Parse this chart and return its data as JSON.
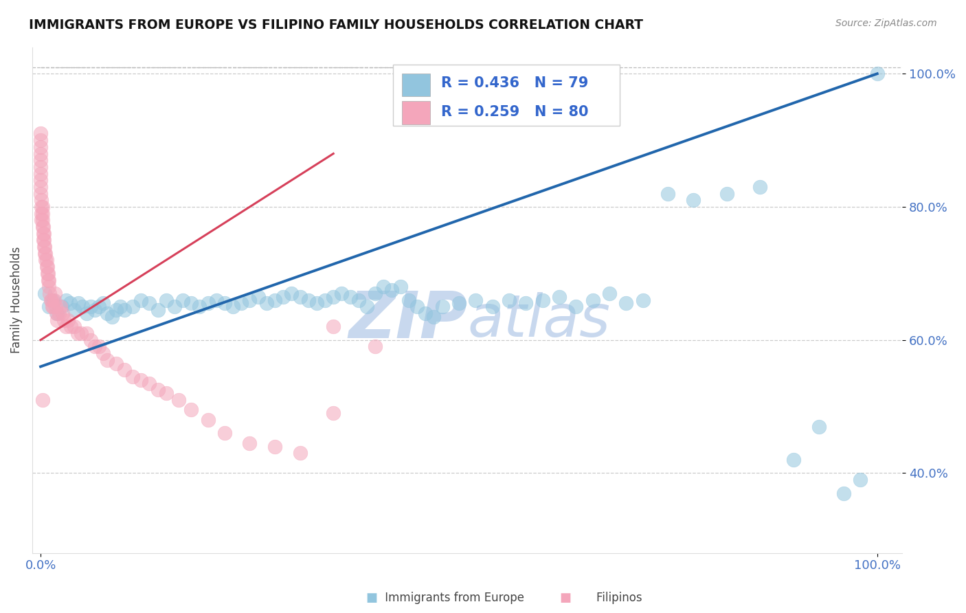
{
  "title": "IMMIGRANTS FROM EUROPE VS FILIPINO FAMILY HOUSEHOLDS CORRELATION CHART",
  "source": "Source: ZipAtlas.com",
  "ylabel": "Family Households",
  "legend_label1": "Immigrants from Europe",
  "legend_label2": "Filipinos",
  "r1": 0.436,
  "n1": 79,
  "r2": 0.259,
  "n2": 80,
  "color_blue": "#92c5de",
  "color_blue_line": "#2166ac",
  "color_pink": "#f4a6bb",
  "color_pink_line": "#d6405a",
  "color_dashed": "#bbbbbb",
  "watermark_zip": "ZIP",
  "watermark_atlas": "atlas",
  "watermark_color_zip": "#c8d8ee",
  "watermark_color_atlas": "#c8d8ee",
  "blue_x": [
    0.005,
    0.01,
    0.015,
    0.02,
    0.025,
    0.03,
    0.035,
    0.04,
    0.045,
    0.05,
    0.055,
    0.06,
    0.065,
    0.07,
    0.075,
    0.08,
    0.085,
    0.09,
    0.095,
    0.1,
    0.11,
    0.12,
    0.13,
    0.14,
    0.15,
    0.16,
    0.17,
    0.18,
    0.19,
    0.2,
    0.21,
    0.22,
    0.23,
    0.24,
    0.25,
    0.26,
    0.27,
    0.28,
    0.29,
    0.3,
    0.31,
    0.32,
    0.33,
    0.34,
    0.35,
    0.36,
    0.37,
    0.38,
    0.39,
    0.4,
    0.41,
    0.42,
    0.43,
    0.44,
    0.45,
    0.46,
    0.47,
    0.48,
    0.5,
    0.52,
    0.54,
    0.56,
    0.58,
    0.6,
    0.62,
    0.64,
    0.66,
    0.68,
    0.7,
    0.72,
    0.75,
    0.78,
    0.82,
    0.86,
    0.9,
    0.93,
    0.96,
    0.98,
    1.0
  ],
  "blue_y": [
    0.67,
    0.65,
    0.66,
    0.64,
    0.65,
    0.66,
    0.655,
    0.645,
    0.655,
    0.65,
    0.64,
    0.65,
    0.645,
    0.65,
    0.655,
    0.64,
    0.635,
    0.645,
    0.65,
    0.645,
    0.65,
    0.66,
    0.655,
    0.645,
    0.66,
    0.65,
    0.66,
    0.655,
    0.65,
    0.655,
    0.66,
    0.655,
    0.65,
    0.655,
    0.66,
    0.665,
    0.655,
    0.66,
    0.665,
    0.67,
    0.665,
    0.66,
    0.655,
    0.66,
    0.665,
    0.67,
    0.665,
    0.66,
    0.65,
    0.67,
    0.68,
    0.675,
    0.68,
    0.66,
    0.65,
    0.64,
    0.635,
    0.65,
    0.655,
    0.66,
    0.65,
    0.66,
    0.655,
    0.66,
    0.665,
    0.65,
    0.66,
    0.67,
    0.655,
    0.66,
    0.82,
    0.81,
    0.82,
    0.83,
    0.42,
    0.47,
    0.37,
    0.39,
    1.0
  ],
  "pink_x": [
    0.0,
    0.0,
    0.0,
    0.0,
    0.0,
    0.0,
    0.0,
    0.0,
    0.0,
    0.0,
    0.001,
    0.001,
    0.001,
    0.001,
    0.002,
    0.002,
    0.002,
    0.002,
    0.003,
    0.003,
    0.003,
    0.004,
    0.004,
    0.004,
    0.005,
    0.005,
    0.006,
    0.006,
    0.007,
    0.007,
    0.008,
    0.008,
    0.009,
    0.009,
    0.01,
    0.01,
    0.011,
    0.012,
    0.013,
    0.014,
    0.015,
    0.016,
    0.017,
    0.018,
    0.019,
    0.02,
    0.022,
    0.024,
    0.026,
    0.028,
    0.03,
    0.033,
    0.036,
    0.04,
    0.044,
    0.048,
    0.055,
    0.06,
    0.065,
    0.07,
    0.075,
    0.08,
    0.09,
    0.1,
    0.11,
    0.12,
    0.13,
    0.14,
    0.15,
    0.165,
    0.18,
    0.2,
    0.22,
    0.25,
    0.28,
    0.31,
    0.35,
    0.4,
    0.002,
    0.35
  ],
  "pink_y": [
    0.86,
    0.87,
    0.88,
    0.89,
    0.9,
    0.91,
    0.85,
    0.84,
    0.83,
    0.82,
    0.78,
    0.79,
    0.8,
    0.81,
    0.77,
    0.78,
    0.79,
    0.8,
    0.75,
    0.76,
    0.77,
    0.74,
    0.75,
    0.76,
    0.73,
    0.74,
    0.72,
    0.73,
    0.71,
    0.72,
    0.7,
    0.71,
    0.69,
    0.7,
    0.68,
    0.69,
    0.67,
    0.66,
    0.66,
    0.65,
    0.65,
    0.66,
    0.67,
    0.65,
    0.64,
    0.63,
    0.64,
    0.65,
    0.64,
    0.63,
    0.62,
    0.63,
    0.62,
    0.62,
    0.61,
    0.61,
    0.61,
    0.6,
    0.59,
    0.59,
    0.58,
    0.57,
    0.565,
    0.555,
    0.545,
    0.54,
    0.535,
    0.525,
    0.52,
    0.51,
    0.495,
    0.48,
    0.46,
    0.445,
    0.44,
    0.43,
    0.49,
    0.59,
    0.51,
    0.62
  ],
  "ylim": [
    0.28,
    1.04
  ],
  "xlim": [
    -0.01,
    1.03
  ],
  "yticks": [
    0.4,
    0.6,
    0.8,
    1.0
  ],
  "ytick_labels": [
    "40.0%",
    "60.0%",
    "80.0%",
    "100.0%"
  ],
  "blue_line_x": [
    0.0,
    1.0
  ],
  "blue_line_y": [
    0.56,
    1.0
  ],
  "pink_line_x": [
    0.0,
    0.35
  ],
  "pink_line_y": [
    0.6,
    0.88
  ]
}
